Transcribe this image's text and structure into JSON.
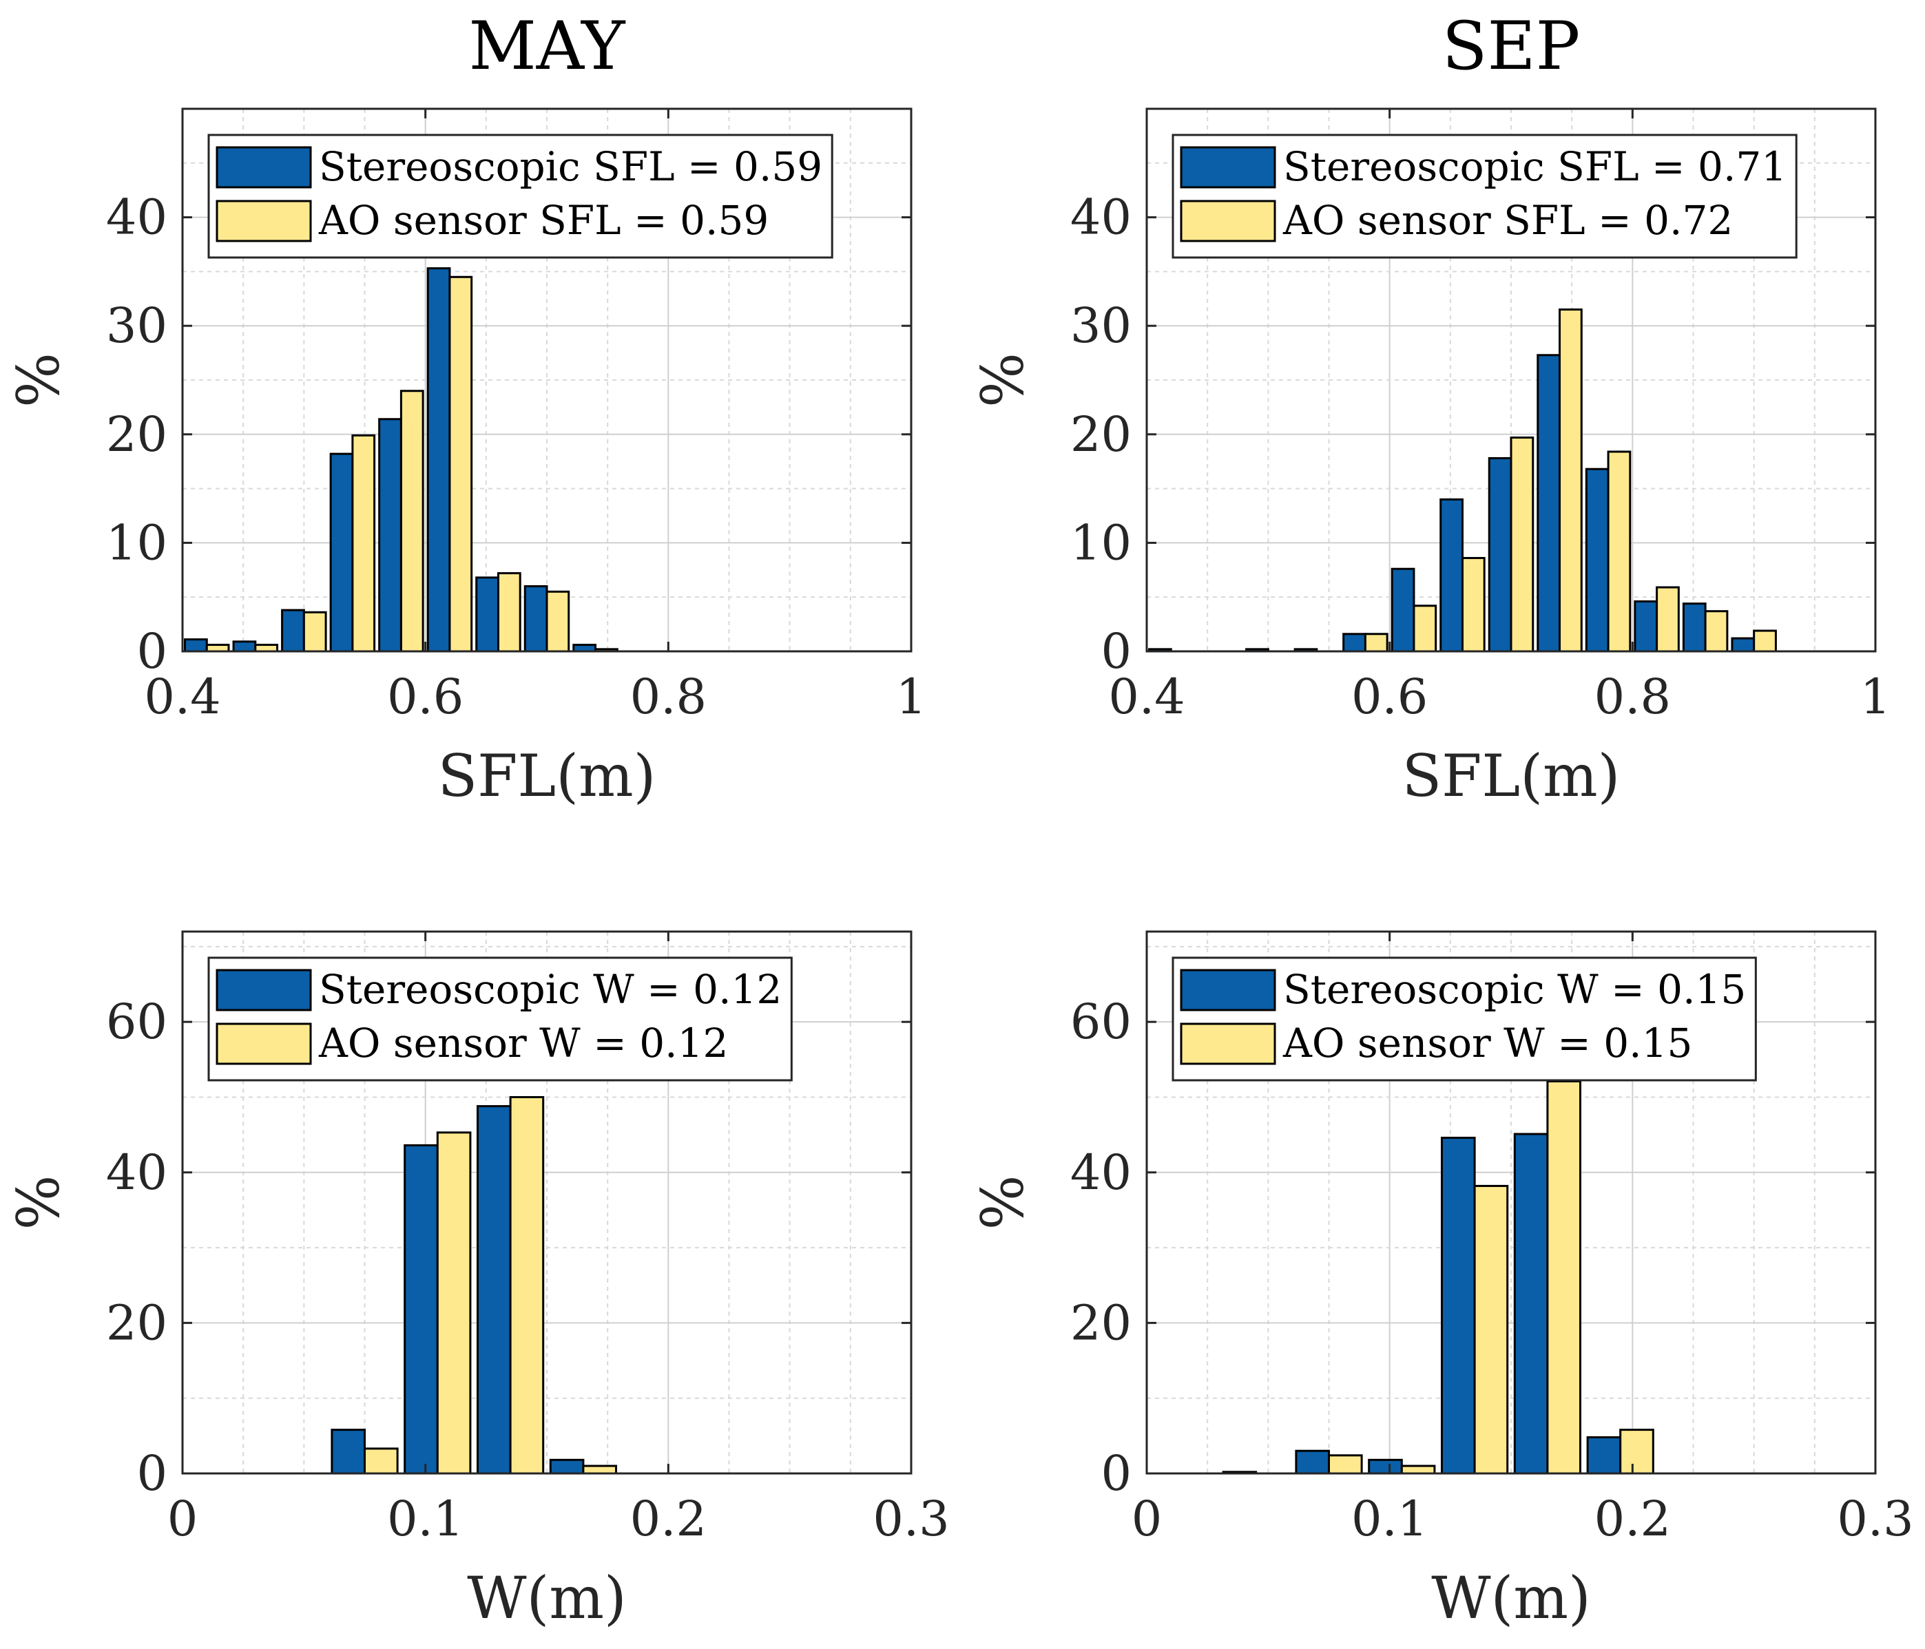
{
  "colors": {
    "stereo": "#0a5fa8",
    "ao": "#ffe98f"
  },
  "chart_data": [
    {
      "type": "bar",
      "title": "MAY",
      "xlabel": "SFL(m)",
      "ylabel": "%",
      "xlim": [
        0.4,
        1
      ],
      "ylim": [
        0,
        50
      ],
      "xticks": [
        "0.4",
        "0.6",
        "0.8",
        "1"
      ],
      "yticks": [
        "0",
        "10",
        "20",
        "30",
        "40"
      ],
      "bin_width": 0.04,
      "x": [
        0.42,
        0.46,
        0.5,
        0.54,
        0.58,
        0.62,
        0.66,
        0.7,
        0.74,
        0.78
      ],
      "series": [
        {
          "name": "Stereoscopic",
          "legend": "Stereoscopic SFL = 0.59",
          "values": [
            1.1,
            0.9,
            3.8,
            18.2,
            21.4,
            35.3,
            6.8,
            6.0,
            0.6,
            0.0
          ]
        },
        {
          "name": "AO sensor",
          "legend": "AO sensor SFL = 0.59",
          "values": [
            0.6,
            0.6,
            3.6,
            19.9,
            24.0,
            34.5,
            7.2,
            5.5,
            0.2,
            0.0
          ]
        }
      ],
      "legend_position": "top-left",
      "grid": true
    },
    {
      "type": "bar",
      "title": "SEP",
      "xlabel": "SFL(m)",
      "ylabel": "%",
      "xlim": [
        0.4,
        1
      ],
      "ylim": [
        0,
        50
      ],
      "xticks": [
        "0.4",
        "0.6",
        "0.8",
        "1"
      ],
      "yticks": [
        "0",
        "10",
        "20",
        "30",
        "40"
      ],
      "bin_width": 0.04,
      "x": [
        0.42,
        0.46,
        0.5,
        0.54,
        0.58,
        0.62,
        0.66,
        0.7,
        0.74,
        0.78,
        0.82,
        0.86,
        0.9
      ],
      "series": [
        {
          "name": "Stereoscopic",
          "legend": "Stereoscopic SFL = 0.71",
          "values": [
            0.2,
            0.0,
            0.2,
            0.2,
            1.6,
            7.6,
            14.0,
            17.8,
            27.3,
            16.8,
            4.6,
            4.4,
            1.2
          ]
        },
        {
          "name": "AO sensor",
          "legend": "AO sensor SFL = 0.72",
          "values": [
            0.0,
            0.0,
            0.0,
            0.0,
            1.6,
            4.2,
            8.6,
            19.7,
            31.5,
            18.4,
            5.9,
            3.7,
            1.9
          ]
        }
      ],
      "legend_position": "top-left",
      "grid": true
    },
    {
      "type": "bar",
      "title": "",
      "xlabel": "W(m)",
      "ylabel": "%",
      "xlim": [
        0,
        0.3
      ],
      "ylim": [
        0,
        72
      ],
      "xticks": [
        "0",
        "0.1",
        "0.2",
        "0.3"
      ],
      "yticks": [
        "0",
        "20",
        "40",
        "60"
      ],
      "bin_width": 0.03,
      "x": [
        0.075,
        0.105,
        0.135,
        0.165
      ],
      "series": [
        {
          "name": "Stereoscopic",
          "legend": "Stereoscopic W = 0.12",
          "values": [
            5.8,
            43.6,
            48.8,
            1.8
          ]
        },
        {
          "name": "AO sensor",
          "legend": "AO sensor W = 0.12",
          "values": [
            3.3,
            45.3,
            50.0,
            1.0
          ]
        }
      ],
      "legend_position": "top-left",
      "grid": true
    },
    {
      "type": "bar",
      "title": "",
      "xlabel": "W(m)",
      "ylabel": "%",
      "xlim": [
        0,
        0.3
      ],
      "ylim": [
        0,
        72
      ],
      "xticks": [
        "0",
        "0.1",
        "0.2",
        "0.3"
      ],
      "yticks": [
        "0",
        "20",
        "40",
        "60"
      ],
      "bin_width": 0.03,
      "x": [
        0.045,
        0.075,
        0.105,
        0.135,
        0.165,
        0.195
      ],
      "series": [
        {
          "name": "Stereoscopic",
          "legend": "Stereoscopic W = 0.15",
          "values": [
            0.2,
            3.0,
            1.8,
            44.6,
            45.1,
            4.8
          ]
        },
        {
          "name": "AO sensor",
          "legend": "AO sensor W = 0.15",
          "values": [
            0.0,
            2.4,
            1.0,
            38.2,
            52.1,
            5.8
          ]
        }
      ],
      "legend_position": "top-left",
      "grid": true
    }
  ]
}
